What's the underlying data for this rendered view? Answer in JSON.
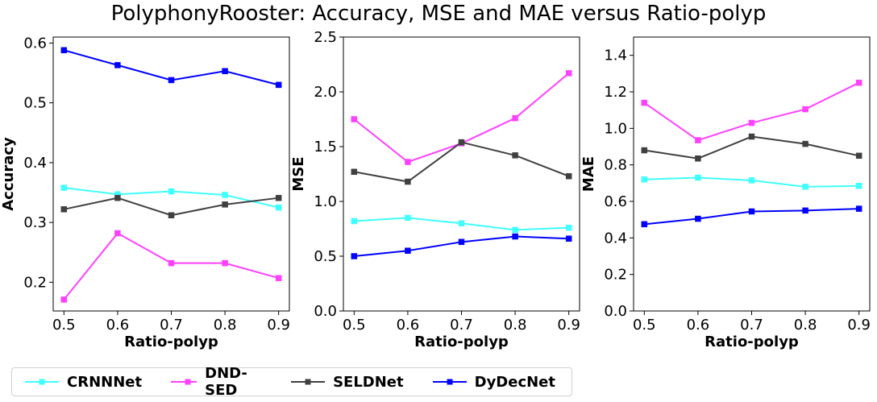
{
  "title": "PolyphonyRooster: Accuracy, MSE and MAE versus Ratio-polyp",
  "colors": {
    "CRNNNet": "#40ffff",
    "DND-SED": "#ff40ff",
    "SELDNet": "#404040",
    "DyDecNet": "#0000ff"
  },
  "legend": [
    "CRNNNet",
    "DND-SED",
    "SELDNet",
    "DyDecNet"
  ],
  "chart_data": [
    {
      "type": "line",
      "x": [
        0.5,
        0.6,
        0.7,
        0.8,
        0.9
      ],
      "xticks": [
        "0.5",
        "0.6",
        "0.7",
        "0.8",
        "0.9"
      ],
      "xlabel": "Ratio-polyp",
      "ylabel": "Accuracy",
      "xlim": [
        0.48,
        0.92
      ],
      "ylim": [
        0.152,
        0.61
      ],
      "yticks": [
        0.2,
        0.3,
        0.4,
        0.5,
        0.6
      ],
      "ytick_labels": [
        "0.2",
        "0.3",
        "0.4",
        "0.5",
        "0.6"
      ],
      "series": [
        {
          "name": "CRNNNet",
          "values": [
            0.358,
            0.347,
            0.352,
            0.346,
            0.325
          ]
        },
        {
          "name": "DND-SED",
          "values": [
            0.171,
            0.282,
            0.232,
            0.232,
            0.207
          ]
        },
        {
          "name": "SELDNet",
          "values": [
            0.322,
            0.341,
            0.312,
            0.33,
            0.341
          ]
        },
        {
          "name": "DyDecNet",
          "values": [
            0.588,
            0.563,
            0.538,
            0.553,
            0.53
          ]
        }
      ]
    },
    {
      "type": "line",
      "x": [
        0.5,
        0.6,
        0.7,
        0.8,
        0.9
      ],
      "xticks": [
        "0.5",
        "0.6",
        "0.7",
        "0.8",
        "0.9"
      ],
      "xlabel": "Ratio-polyp",
      "ylabel": "MSE",
      "xlim": [
        0.48,
        0.92
      ],
      "ylim": [
        0.0,
        2.5
      ],
      "yticks": [
        0.0,
        0.5,
        1.0,
        1.5,
        2.0,
        2.5
      ],
      "ytick_labels": [
        "0.0",
        "0.5",
        "1.0",
        "1.5",
        "2.0",
        "2.5"
      ],
      "series": [
        {
          "name": "CRNNNet",
          "values": [
            0.82,
            0.85,
            0.8,
            0.74,
            0.76
          ]
        },
        {
          "name": "DND-SED",
          "values": [
            1.75,
            1.36,
            1.53,
            1.76,
            2.17
          ]
        },
        {
          "name": "SELDNet",
          "values": [
            1.27,
            1.18,
            1.54,
            1.42,
            1.23
          ]
        },
        {
          "name": "DyDecNet",
          "values": [
            0.5,
            0.55,
            0.63,
            0.68,
            0.66
          ]
        }
      ]
    },
    {
      "type": "line",
      "x": [
        0.5,
        0.6,
        0.7,
        0.8,
        0.9
      ],
      "xticks": [
        "0.5",
        "0.6",
        "0.7",
        "0.8",
        "0.9"
      ],
      "xlabel": "Ratio-polyp",
      "ylabel": "MAE",
      "xlim": [
        0.48,
        0.92
      ],
      "ylim": [
        0.0,
        1.5
      ],
      "yticks": [
        0.0,
        0.2,
        0.4,
        0.6,
        0.8,
        1.0,
        1.2,
        1.4
      ],
      "ytick_labels": [
        "0.0",
        "0.2",
        "0.4",
        "0.6",
        "0.8",
        "1.0",
        "1.2",
        "1.4"
      ],
      "series": [
        {
          "name": "CRNNNet",
          "values": [
            0.72,
            0.73,
            0.715,
            0.68,
            0.685
          ]
        },
        {
          "name": "DND-SED",
          "values": [
            1.14,
            0.935,
            1.03,
            1.105,
            1.25
          ]
        },
        {
          "name": "SELDNet",
          "values": [
            0.88,
            0.835,
            0.955,
            0.915,
            0.85
          ]
        },
        {
          "name": "DyDecNet",
          "values": [
            0.475,
            0.505,
            0.545,
            0.55,
            0.56
          ]
        }
      ]
    }
  ]
}
